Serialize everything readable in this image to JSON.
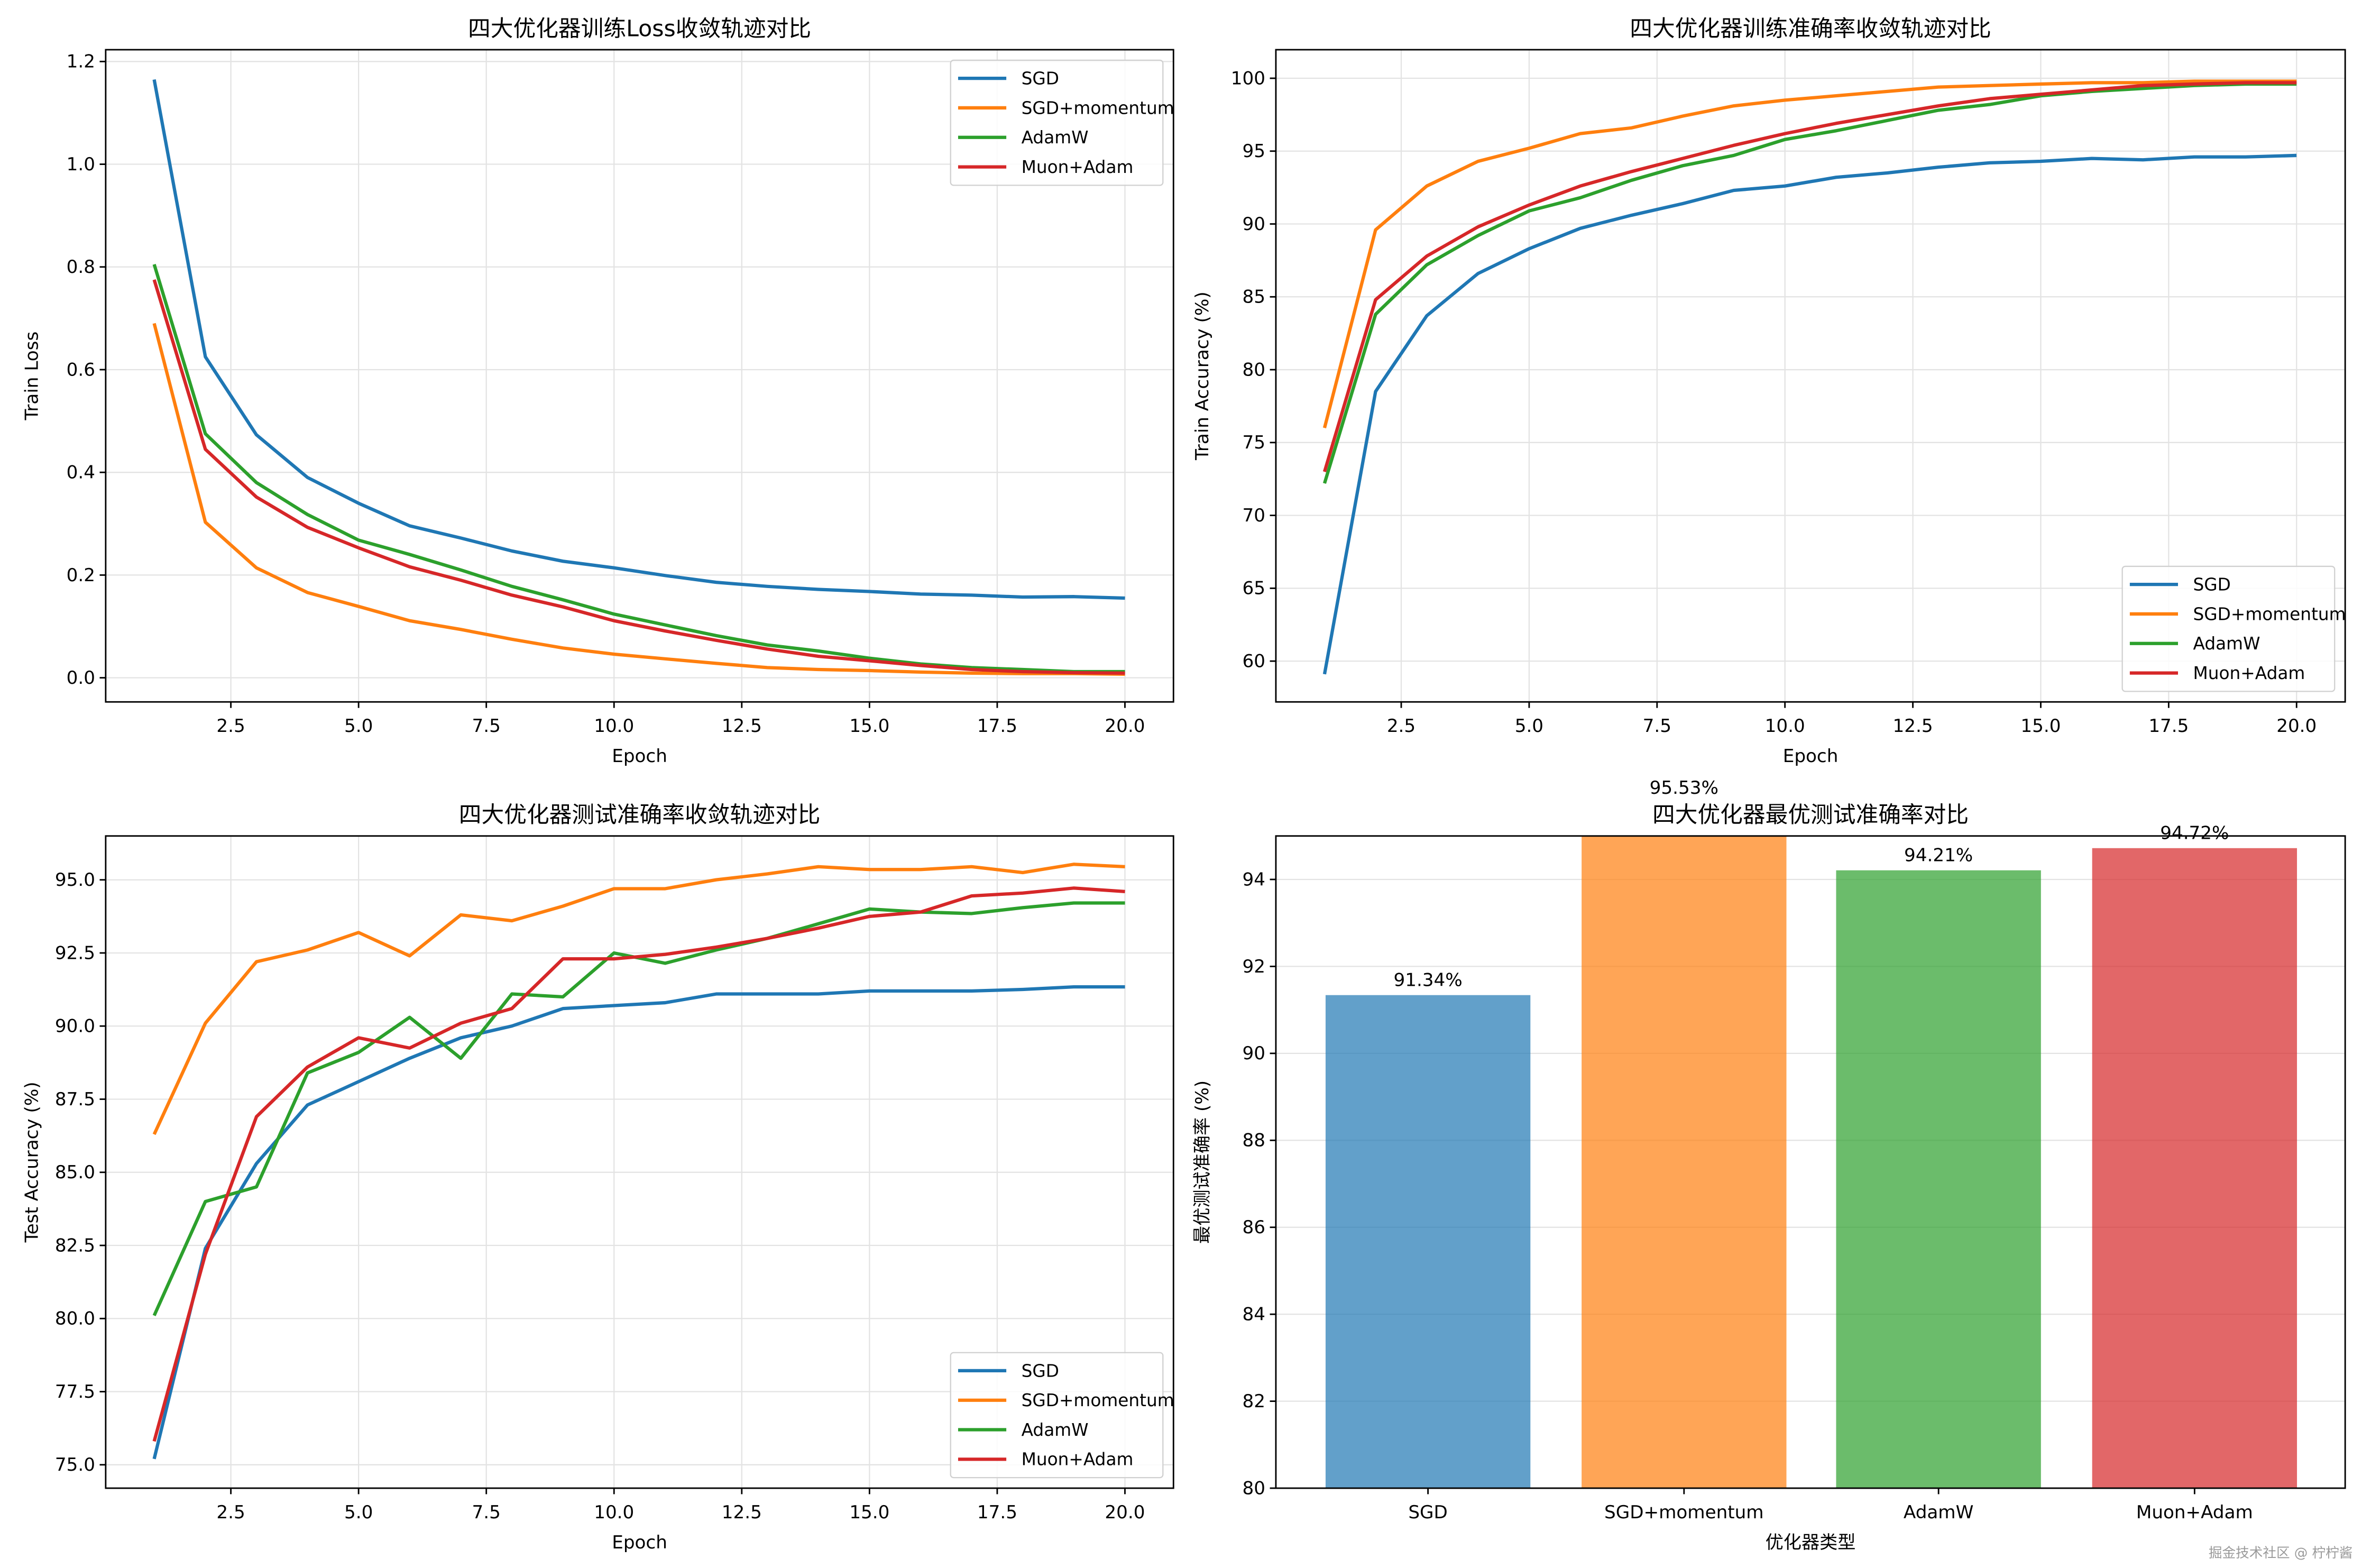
{
  "colors": {
    "SGD": "#1f77b4",
    "SGD+momentum": "#ff7f0e",
    "AdamW": "#2ca02c",
    "Muon+Adam": "#d62728"
  },
  "watermark": "掘金技术社区 @ 柠柠酱",
  "chart_data": [
    {
      "type": "line",
      "title": "四大优化器训练Loss收敛轨迹对比",
      "xlabel": "Epoch",
      "ylabel": "Train Loss",
      "xlim": [
        0.05,
        20.95
      ],
      "ylim": [
        -0.047,
        1.223
      ],
      "x_ticks": [
        2.5,
        5.0,
        7.5,
        10.0,
        12.5,
        15.0,
        17.5,
        20.0
      ],
      "x_tick_labels": [
        "2.5",
        "5.0",
        "7.5",
        "10.0",
        "12.5",
        "15.0",
        "17.5",
        "20.0"
      ],
      "y_ticks": [
        0.0,
        0.2,
        0.4,
        0.6,
        0.8,
        1.0,
        1.2
      ],
      "y_tick_labels": [
        "0.0",
        "0.2",
        "0.4",
        "0.6",
        "0.8",
        "1.0",
        "1.2"
      ],
      "grid": true,
      "legend": "top-right",
      "x": [
        1,
        2,
        3,
        4,
        5,
        6,
        7,
        8,
        9,
        10,
        11,
        12,
        13,
        14,
        15,
        16,
        17,
        18,
        19,
        20
      ],
      "series": [
        {
          "name": "SGD",
          "values": [
            1.165,
            0.625,
            0.473,
            0.39,
            0.34,
            0.296,
            0.272,
            0.247,
            0.227,
            0.214,
            0.199,
            0.186,
            0.178,
            0.172,
            0.168,
            0.163,
            0.161,
            0.157,
            0.158,
            0.155
          ]
        },
        {
          "name": "SGD+momentum",
          "values": [
            0.69,
            0.303,
            0.214,
            0.166,
            0.139,
            0.111,
            0.094,
            0.075,
            0.058,
            0.046,
            0.037,
            0.028,
            0.02,
            0.016,
            0.014,
            0.011,
            0.009,
            0.008,
            0.008,
            0.007
          ]
        },
        {
          "name": "AdamW",
          "values": [
            0.805,
            0.475,
            0.38,
            0.318,
            0.268,
            0.24,
            0.21,
            0.178,
            0.152,
            0.124,
            0.103,
            0.082,
            0.064,
            0.052,
            0.038,
            0.027,
            0.02,
            0.016,
            0.012,
            0.012
          ]
        },
        {
          "name": "Muon+Adam",
          "values": [
            0.775,
            0.445,
            0.352,
            0.293,
            0.253,
            0.216,
            0.19,
            0.161,
            0.138,
            0.111,
            0.091,
            0.073,
            0.056,
            0.042,
            0.033,
            0.024,
            0.016,
            0.012,
            0.01,
            0.009
          ]
        }
      ]
    },
    {
      "type": "line",
      "title": "四大优化器训练准确率收敛轨迹对比",
      "xlabel": "Epoch",
      "ylabel": "Train Accuracy (%)",
      "xlim": [
        0.05,
        20.95
      ],
      "ylim": [
        57.2,
        101.96
      ],
      "x_ticks": [
        2.5,
        5.0,
        7.5,
        10.0,
        12.5,
        15.0,
        17.5,
        20.0
      ],
      "x_tick_labels": [
        "2.5",
        "5.0",
        "7.5",
        "10.0",
        "12.5",
        "15.0",
        "17.5",
        "20.0"
      ],
      "y_ticks": [
        60,
        65,
        70,
        75,
        80,
        85,
        90,
        95,
        100
      ],
      "y_tick_labels": [
        "60",
        "65",
        "70",
        "75",
        "80",
        "85",
        "90",
        "95",
        "100"
      ],
      "grid": true,
      "legend": "lower-right",
      "x": [
        1,
        2,
        3,
        4,
        5,
        6,
        7,
        8,
        9,
        10,
        11,
        12,
        13,
        14,
        15,
        16,
        17,
        18,
        19,
        20
      ],
      "series": [
        {
          "name": "SGD",
          "values": [
            59.1,
            78.5,
            83.7,
            86.6,
            88.3,
            89.7,
            90.6,
            91.4,
            92.3,
            92.6,
            93.2,
            93.5,
            93.9,
            94.2,
            94.3,
            94.5,
            94.4,
            94.6,
            94.6,
            94.7
          ]
        },
        {
          "name": "SGD+momentum",
          "values": [
            76.0,
            89.6,
            92.6,
            94.3,
            95.2,
            96.2,
            96.6,
            97.4,
            98.1,
            98.5,
            98.8,
            99.1,
            99.4,
            99.5,
            99.6,
            99.7,
            99.7,
            99.8,
            99.8,
            99.8
          ]
        },
        {
          "name": "AdamW",
          "values": [
            72.2,
            83.8,
            87.2,
            89.2,
            90.9,
            91.8,
            93.0,
            94.0,
            94.7,
            95.8,
            96.4,
            97.1,
            97.8,
            98.2,
            98.8,
            99.1,
            99.3,
            99.5,
            99.6,
            99.6
          ]
        },
        {
          "name": "Muon+Adam",
          "values": [
            73.0,
            84.8,
            87.8,
            89.8,
            91.3,
            92.6,
            93.6,
            94.5,
            95.4,
            96.2,
            96.9,
            97.5,
            98.1,
            98.6,
            98.9,
            99.2,
            99.5,
            99.6,
            99.7,
            99.7
          ]
        }
      ]
    },
    {
      "type": "line",
      "title": "四大优化器测试准确率收敛轨迹对比",
      "xlabel": "Epoch",
      "ylabel": "Test Accuracy (%)",
      "xlim": [
        0.05,
        20.95
      ],
      "ylim": [
        74.2,
        96.5
      ],
      "x_ticks": [
        2.5,
        5.0,
        7.5,
        10.0,
        12.5,
        15.0,
        17.5,
        20.0
      ],
      "x_tick_labels": [
        "2.5",
        "5.0",
        "7.5",
        "10.0",
        "12.5",
        "15.0",
        "17.5",
        "20.0"
      ],
      "y_ticks": [
        75.0,
        77.5,
        80.0,
        82.5,
        85.0,
        87.5,
        90.0,
        92.5,
        95.0
      ],
      "y_tick_labels": [
        "75.0",
        "77.5",
        "80.0",
        "82.5",
        "85.0",
        "87.5",
        "90.0",
        "92.5",
        "95.0"
      ],
      "grid": true,
      "legend": "lower-right",
      "x": [
        1,
        2,
        3,
        4,
        5,
        6,
        7,
        8,
        9,
        10,
        11,
        12,
        13,
        14,
        15,
        16,
        17,
        18,
        19,
        20
      ],
      "series": [
        {
          "name": "SGD",
          "values": [
            75.2,
            82.4,
            85.3,
            87.3,
            88.1,
            88.9,
            89.6,
            90.0,
            90.6,
            90.7,
            90.8,
            91.1,
            91.1,
            91.1,
            91.2,
            91.2,
            91.2,
            91.25,
            91.34,
            91.34
          ]
        },
        {
          "name": "SGD+momentum",
          "values": [
            86.3,
            90.1,
            92.2,
            92.6,
            93.2,
            92.4,
            93.8,
            93.6,
            94.1,
            94.7,
            94.7,
            95.0,
            95.2,
            95.45,
            95.35,
            95.35,
            95.45,
            95.25,
            95.53,
            95.45
          ]
        },
        {
          "name": "AdamW",
          "values": [
            80.1,
            84.0,
            84.5,
            88.4,
            89.1,
            90.3,
            88.9,
            91.1,
            91.0,
            92.5,
            92.15,
            92.6,
            93.0,
            93.5,
            94.0,
            93.9,
            93.85,
            94.05,
            94.21,
            94.21
          ]
        },
        {
          "name": "Muon+Adam",
          "values": [
            75.8,
            82.2,
            86.9,
            88.6,
            89.6,
            89.25,
            90.1,
            90.6,
            92.3,
            92.3,
            92.45,
            92.7,
            93.0,
            93.35,
            93.75,
            93.9,
            94.45,
            94.55,
            94.72,
            94.6
          ]
        }
      ]
    },
    {
      "type": "bar",
      "title": "四大优化器最优测试准确率对比",
      "xlabel": "优化器类型",
      "ylabel": "最优测试准确率 (%)",
      "ylim": [
        80,
        95
      ],
      "y_ticks": [
        80,
        82,
        84,
        86,
        88,
        90,
        92,
        94
      ],
      "y_tick_labels": [
        "80",
        "82",
        "84",
        "86",
        "88",
        "90",
        "92",
        "94"
      ],
      "grid": true,
      "categories": [
        "SGD",
        "SGD+momentum",
        "AdamW",
        "Muon+Adam"
      ],
      "values": [
        91.34,
        95.53,
        94.21,
        94.72
      ],
      "data_labels": [
        "91.34%",
        "95.53%",
        "94.21%",
        "94.72%"
      ],
      "bar_colors": [
        "#1f77b4",
        "#ff7f0e",
        "#2ca02c",
        "#d62728"
      ],
      "bar_alpha": 0.7
    }
  ]
}
